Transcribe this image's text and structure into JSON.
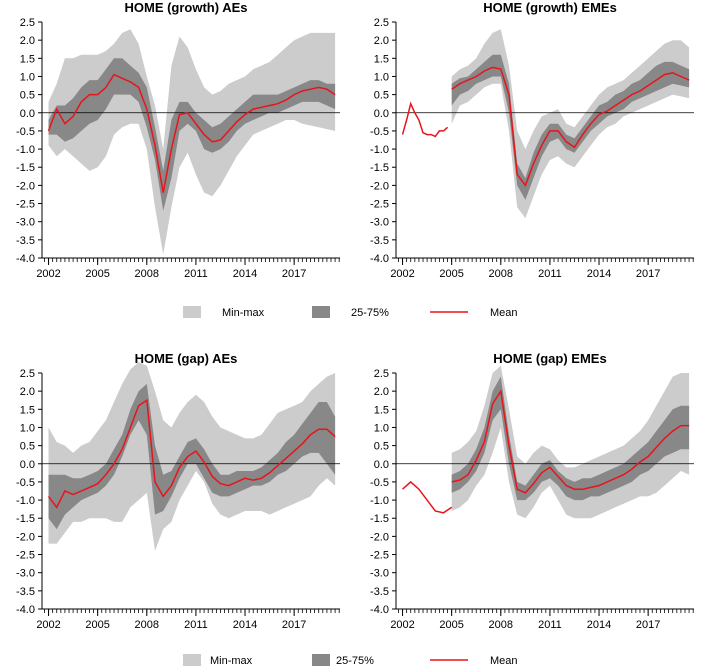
{
  "colors": {
    "minmax": "#cccccc",
    "iqr": "#888888",
    "mean": "#e8141c",
    "axis": "#000000",
    "zero": "#000000"
  },
  "legend": {
    "minmax_label": "Min-max",
    "iqr_label": "25-75%",
    "mean_label": "Mean"
  },
  "chart_data": [
    {
      "type": "area",
      "title": "HOME (growth) AEs",
      "xlim": [
        2001.6,
        2019.8
      ],
      "ylim": [
        -4.0,
        2.5
      ],
      "yticks": [
        "2.5",
        "2.0",
        "1.5",
        "1.0",
        "0.5",
        "0.0",
        "-0.5",
        "-1.0",
        "-1.5",
        "-2.0",
        "-2.5",
        "-3.0",
        "-3.5",
        "-4.0"
      ],
      "xticks": [
        "2002",
        "2005",
        "2008",
        "2011",
        "2014",
        "2017"
      ],
      "x": [
        2002,
        2002.5,
        2003,
        2003.5,
        2004,
        2004.5,
        2005,
        2005.5,
        2006,
        2006.5,
        2007,
        2007.5,
        2008,
        2008.5,
        2009,
        2009.5,
        2010,
        2010.5,
        2011,
        2011.5,
        2012,
        2012.5,
        2013,
        2013.5,
        2014,
        2014.5,
        2015,
        2015.5,
        2016,
        2016.5,
        2017,
        2017.5,
        2018,
        2018.5,
        2019,
        2019.5
      ],
      "min": [
        -0.9,
        -1.2,
        -1.0,
        -1.2,
        -1.4,
        -1.6,
        -1.5,
        -1.2,
        -0.6,
        -0.4,
        -0.3,
        -0.3,
        -1.0,
        -2.6,
        -3.9,
        -2.6,
        -1.5,
        -1.1,
        -1.7,
        -2.2,
        -2.3,
        -2.0,
        -1.6,
        -1.2,
        -0.9,
        -0.6,
        -0.5,
        -0.4,
        -0.3,
        -0.2,
        -0.2,
        -0.3,
        -0.35,
        -0.4,
        -0.45,
        -0.5
      ],
      "max": [
        0.3,
        0.8,
        1.5,
        1.5,
        1.6,
        1.6,
        1.6,
        1.7,
        1.9,
        2.2,
        2.3,
        1.9,
        1.0,
        0.2,
        -1.0,
        1.3,
        2.1,
        1.8,
        1.2,
        0.7,
        0.5,
        0.6,
        0.8,
        0.9,
        1.0,
        1.2,
        1.3,
        1.4,
        1.6,
        1.8,
        2.0,
        2.1,
        2.2,
        2.2,
        2.2,
        2.2
      ],
      "q25": [
        -0.6,
        -0.6,
        -0.8,
        -0.7,
        -0.5,
        -0.3,
        -0.2,
        0.1,
        0.5,
        0.5,
        0.5,
        0.3,
        -0.4,
        -1.3,
        -2.7,
        -1.8,
        -0.5,
        -0.3,
        -0.5,
        -1.0,
        -1.1,
        -1.0,
        -0.8,
        -0.5,
        -0.3,
        -0.2,
        -0.1,
        0.0,
        0.0,
        0.1,
        0.2,
        0.3,
        0.3,
        0.3,
        0.2,
        0.1
      ],
      "q75": [
        -0.2,
        0.2,
        0.2,
        0.4,
        0.7,
        0.9,
        0.9,
        1.2,
        1.5,
        1.5,
        1.3,
        1.1,
        0.7,
        -0.4,
        -1.6,
        -0.2,
        0.3,
        0.3,
        0.0,
        -0.2,
        -0.4,
        -0.3,
        -0.1,
        0.1,
        0.3,
        0.5,
        0.5,
        0.5,
        0.5,
        0.6,
        0.7,
        0.8,
        0.9,
        0.9,
        0.8,
        0.8
      ],
      "mean": [
        -0.5,
        0.1,
        -0.3,
        -0.1,
        0.3,
        0.5,
        0.5,
        0.7,
        1.05,
        0.95,
        0.85,
        0.7,
        0.1,
        -0.9,
        -2.2,
        -1.0,
        -0.05,
        0.0,
        -0.3,
        -0.6,
        -0.8,
        -0.75,
        -0.5,
        -0.25,
        -0.05,
        0.1,
        0.15,
        0.2,
        0.25,
        0.35,
        0.5,
        0.6,
        0.65,
        0.7,
        0.65,
        0.5
      ]
    },
    {
      "type": "area",
      "title": "HOME (growth) EMEs",
      "xlim": [
        2001.6,
        2019.8
      ],
      "ylim": [
        -4.0,
        2.5
      ],
      "yticks": [
        "2.5",
        "2.0",
        "1.5",
        "1.0",
        "0.5",
        "0.0",
        "-0.5",
        "-1.0",
        "-1.5",
        "-2.0",
        "-2.5",
        "-3.0",
        "-3.5",
        "-4.0"
      ],
      "xticks": [
        "2002",
        "2005",
        "2008",
        "2011",
        "2014",
        "2017"
      ],
      "mean_pre": {
        "x": [
          2002,
          2002.25,
          2002.5,
          2002.75,
          2003,
          2003.25,
          2003.5,
          2003.75,
          2004,
          2004.25,
          2004.5,
          2004.75
        ],
        "y": [
          -0.6,
          -0.2,
          0.25,
          0.0,
          -0.2,
          -0.55,
          -0.6,
          -0.6,
          -0.65,
          -0.5,
          -0.5,
          -0.4
        ]
      },
      "x": [
        2005,
        2005.5,
        2006,
        2006.5,
        2007,
        2007.5,
        2008,
        2008.5,
        2009,
        2009.5,
        2010,
        2010.5,
        2011,
        2011.5,
        2012,
        2012.5,
        2013,
        2013.5,
        2014,
        2014.5,
        2015,
        2015.5,
        2016,
        2016.5,
        2017,
        2017.5,
        2018,
        2018.5,
        2019,
        2019.5
      ],
      "min": [
        -0.3,
        0.2,
        0.3,
        0.5,
        0.7,
        0.8,
        0.8,
        -0.5,
        -2.6,
        -2.9,
        -2.3,
        -1.7,
        -1.3,
        -1.2,
        -1.4,
        -1.5,
        -1.2,
        -0.9,
        -0.6,
        -0.4,
        -0.3,
        -0.1,
        0.0,
        0.1,
        0.2,
        0.3,
        0.4,
        0.5,
        0.45,
        0.4
      ],
      "max": [
        1.0,
        1.2,
        1.3,
        1.5,
        1.9,
        2.2,
        2.3,
        1.3,
        -0.5,
        -1.0,
        -0.5,
        -0.1,
        0.0,
        0.1,
        -0.3,
        -0.4,
        -0.1,
        0.2,
        0.5,
        0.7,
        0.8,
        0.9,
        1.1,
        1.3,
        1.5,
        1.7,
        1.9,
        2.0,
        2.0,
        1.8
      ],
      "q25": [
        0.2,
        0.5,
        0.6,
        0.8,
        0.9,
        1.0,
        1.0,
        0.0,
        -2.0,
        -2.4,
        -1.8,
        -1.2,
        -0.8,
        -0.7,
        -1.0,
        -1.1,
        -0.8,
        -0.5,
        -0.3,
        -0.1,
        0.0,
        0.1,
        0.3,
        0.4,
        0.5,
        0.6,
        0.7,
        0.8,
        0.75,
        0.7
      ],
      "q75": [
        0.8,
        0.95,
        1.0,
        1.2,
        1.4,
        1.6,
        1.6,
        0.8,
        -1.4,
        -1.8,
        -1.1,
        -0.6,
        -0.3,
        -0.3,
        -0.6,
        -0.7,
        -0.4,
        -0.1,
        0.2,
        0.3,
        0.5,
        0.6,
        0.8,
        0.9,
        1.1,
        1.3,
        1.4,
        1.4,
        1.3,
        1.2
      ],
      "mean": [
        0.65,
        0.8,
        0.9,
        1.0,
        1.15,
        1.25,
        1.2,
        0.5,
        -1.7,
        -2.0,
        -1.4,
        -0.9,
        -0.5,
        -0.5,
        -0.8,
        -0.95,
        -0.6,
        -0.3,
        -0.05,
        0.05,
        0.2,
        0.35,
        0.5,
        0.6,
        0.75,
        0.9,
        1.05,
        1.1,
        1.0,
        0.9
      ]
    },
    {
      "type": "area",
      "title": "HOME (gap) AEs",
      "xlim": [
        2001.6,
        2019.8
      ],
      "ylim": [
        -4.0,
        2.5
      ],
      "yticks": [
        "2.5",
        "2.0",
        "1.5",
        "1.0",
        "0.5",
        "0.0",
        "-0.5",
        "-1.0",
        "-1.5",
        "-2.0",
        "-2.5",
        "-3.0",
        "-3.5",
        "-4.0"
      ],
      "xticks": [
        "2002",
        "2005",
        "2008",
        "2011",
        "2014",
        "2017"
      ],
      "x": [
        2002,
        2002.5,
        2003,
        2003.5,
        2004,
        2004.5,
        2005,
        2005.5,
        2006,
        2006.5,
        2007,
        2007.5,
        2008,
        2008.5,
        2009,
        2009.5,
        2010,
        2010.5,
        2011,
        2011.5,
        2012,
        2012.5,
        2013,
        2013.5,
        2014,
        2014.5,
        2015,
        2015.5,
        2016,
        2016.5,
        2017,
        2017.5,
        2018,
        2018.5,
        2019,
        2019.5
      ],
      "min": [
        -2.2,
        -2.2,
        -1.9,
        -1.6,
        -1.6,
        -1.5,
        -1.5,
        -1.5,
        -1.6,
        -1.6,
        -1.2,
        -1.0,
        -0.8,
        -2.4,
        -1.8,
        -1.6,
        -1.0,
        -0.6,
        -0.2,
        -0.5,
        -1.1,
        -1.4,
        -1.5,
        -1.4,
        -1.3,
        -1.3,
        -1.3,
        -1.4,
        -1.3,
        -1.2,
        -1.1,
        -1.0,
        -0.9,
        -0.6,
        -0.4,
        -0.6
      ],
      "max": [
        1.0,
        0.6,
        0.5,
        0.3,
        0.5,
        0.6,
        0.9,
        1.2,
        1.7,
        2.2,
        2.6,
        2.8,
        2.7,
        2.0,
        1.2,
        1.0,
        1.4,
        1.7,
        1.9,
        1.7,
        1.3,
        1.0,
        0.9,
        0.8,
        0.7,
        0.7,
        0.8,
        1.1,
        1.4,
        1.5,
        1.6,
        1.7,
        2.0,
        2.2,
        2.4,
        2.5
      ],
      "q25": [
        -1.5,
        -1.8,
        -1.4,
        -1.2,
        -1.0,
        -0.9,
        -0.8,
        -0.6,
        -0.3,
        0.2,
        0.8,
        1.2,
        0.8,
        -1.4,
        -1.3,
        -0.9,
        -0.4,
        0.0,
        0.0,
        -0.4,
        -0.8,
        -0.9,
        -0.9,
        -0.8,
        -0.7,
        -0.6,
        -0.6,
        -0.5,
        -0.3,
        -0.2,
        0.0,
        0.2,
        0.3,
        0.3,
        0.0,
        -0.3
      ],
      "q75": [
        -0.3,
        -0.3,
        -0.3,
        -0.4,
        -0.4,
        -0.3,
        -0.2,
        0.0,
        0.4,
        0.8,
        1.5,
        2.0,
        2.2,
        0.5,
        -0.3,
        -0.2,
        0.2,
        0.6,
        0.7,
        0.4,
        0.0,
        -0.3,
        -0.3,
        -0.2,
        -0.2,
        -0.2,
        -0.1,
        0.1,
        0.3,
        0.6,
        0.8,
        1.1,
        1.4,
        1.7,
        1.7,
        1.3
      ],
      "mean": [
        -0.9,
        -1.2,
        -0.75,
        -0.85,
        -0.75,
        -0.65,
        -0.55,
        -0.3,
        0.0,
        0.4,
        1.0,
        1.6,
        1.75,
        -0.5,
        -0.9,
        -0.6,
        -0.1,
        0.2,
        0.35,
        0.05,
        -0.35,
        -0.55,
        -0.6,
        -0.5,
        -0.4,
        -0.45,
        -0.4,
        -0.25,
        -0.05,
        0.15,
        0.35,
        0.55,
        0.8,
        0.95,
        0.95,
        0.75
      ]
    },
    {
      "type": "area",
      "title": "HOME (gap) EMEs",
      "xlim": [
        2001.6,
        2019.8
      ],
      "ylim": [
        -4.0,
        2.5
      ],
      "yticks": [
        "2.5",
        "2.0",
        "1.5",
        "1.0",
        "0.5",
        "0.0",
        "-0.5",
        "-1.0",
        "-1.5",
        "-2.0",
        "-2.5",
        "-3.0",
        "-3.5",
        "-4.0"
      ],
      "xticks": [
        "2002",
        "2005",
        "2008",
        "2011",
        "2014",
        "2017"
      ],
      "mean_pre": {
        "x": [
          2002,
          2002.5,
          2003,
          2003.5,
          2004,
          2004.5,
          2005
        ],
        "y": [
          -0.7,
          -0.5,
          -0.7,
          -1.0,
          -1.3,
          -1.35,
          -1.2
        ]
      },
      "x": [
        2005,
        2005.5,
        2006,
        2006.5,
        2007,
        2007.5,
        2008,
        2008.5,
        2009,
        2009.5,
        2010,
        2010.5,
        2011,
        2011.5,
        2012,
        2012.5,
        2013,
        2013.5,
        2014,
        2014.5,
        2015,
        2015.5,
        2016,
        2016.5,
        2017,
        2017.5,
        2018,
        2018.5,
        2019,
        2019.5
      ],
      "min": [
        -1.3,
        -1.2,
        -1.0,
        -0.6,
        -0.3,
        0.3,
        1.0,
        -0.5,
        -1.4,
        -1.5,
        -1.2,
        -0.8,
        -0.6,
        -1.0,
        -1.4,
        -1.5,
        -1.5,
        -1.5,
        -1.4,
        -1.3,
        -1.2,
        -1.1,
        -1.0,
        -0.9,
        -0.9,
        -0.8,
        -0.6,
        -0.4,
        -0.2,
        -0.3
      ],
      "max": [
        0.3,
        0.4,
        0.6,
        0.9,
        1.6,
        2.5,
        2.7,
        1.5,
        0.2,
        0.0,
        0.3,
        0.5,
        0.4,
        0.1,
        -0.1,
        -0.1,
        0.0,
        0.1,
        0.2,
        0.3,
        0.4,
        0.5,
        0.7,
        0.9,
        1.2,
        1.6,
        2.0,
        2.4,
        2.5,
        2.5
      ],
      "q25": [
        -0.8,
        -0.7,
        -0.5,
        -0.2,
        0.3,
        1.2,
        1.5,
        0.0,
        -1.0,
        -1.0,
        -0.8,
        -0.5,
        -0.4,
        -0.6,
        -0.9,
        -1.0,
        -1.0,
        -0.9,
        -0.9,
        -0.8,
        -0.7,
        -0.6,
        -0.5,
        -0.3,
        -0.2,
        0.0,
        0.2,
        0.3,
        0.4,
        0.4
      ],
      "q75": [
        -0.3,
        -0.2,
        0.0,
        0.4,
        1.0,
        2.0,
        2.4,
        0.8,
        -0.5,
        -0.6,
        -0.3,
        0.0,
        0.1,
        -0.2,
        -0.4,
        -0.5,
        -0.4,
        -0.4,
        -0.3,
        -0.2,
        -0.1,
        0.0,
        0.2,
        0.4,
        0.6,
        0.9,
        1.2,
        1.5,
        1.6,
        1.6
      ],
      "mean": [
        -0.5,
        -0.45,
        -0.3,
        0.1,
        0.6,
        1.65,
        2.0,
        0.5,
        -0.7,
        -0.8,
        -0.55,
        -0.25,
        -0.1,
        -0.35,
        -0.6,
        -0.7,
        -0.7,
        -0.65,
        -0.6,
        -0.5,
        -0.4,
        -0.3,
        -0.15,
        0.05,
        0.2,
        0.45,
        0.7,
        0.9,
        1.05,
        1.05
      ]
    }
  ]
}
